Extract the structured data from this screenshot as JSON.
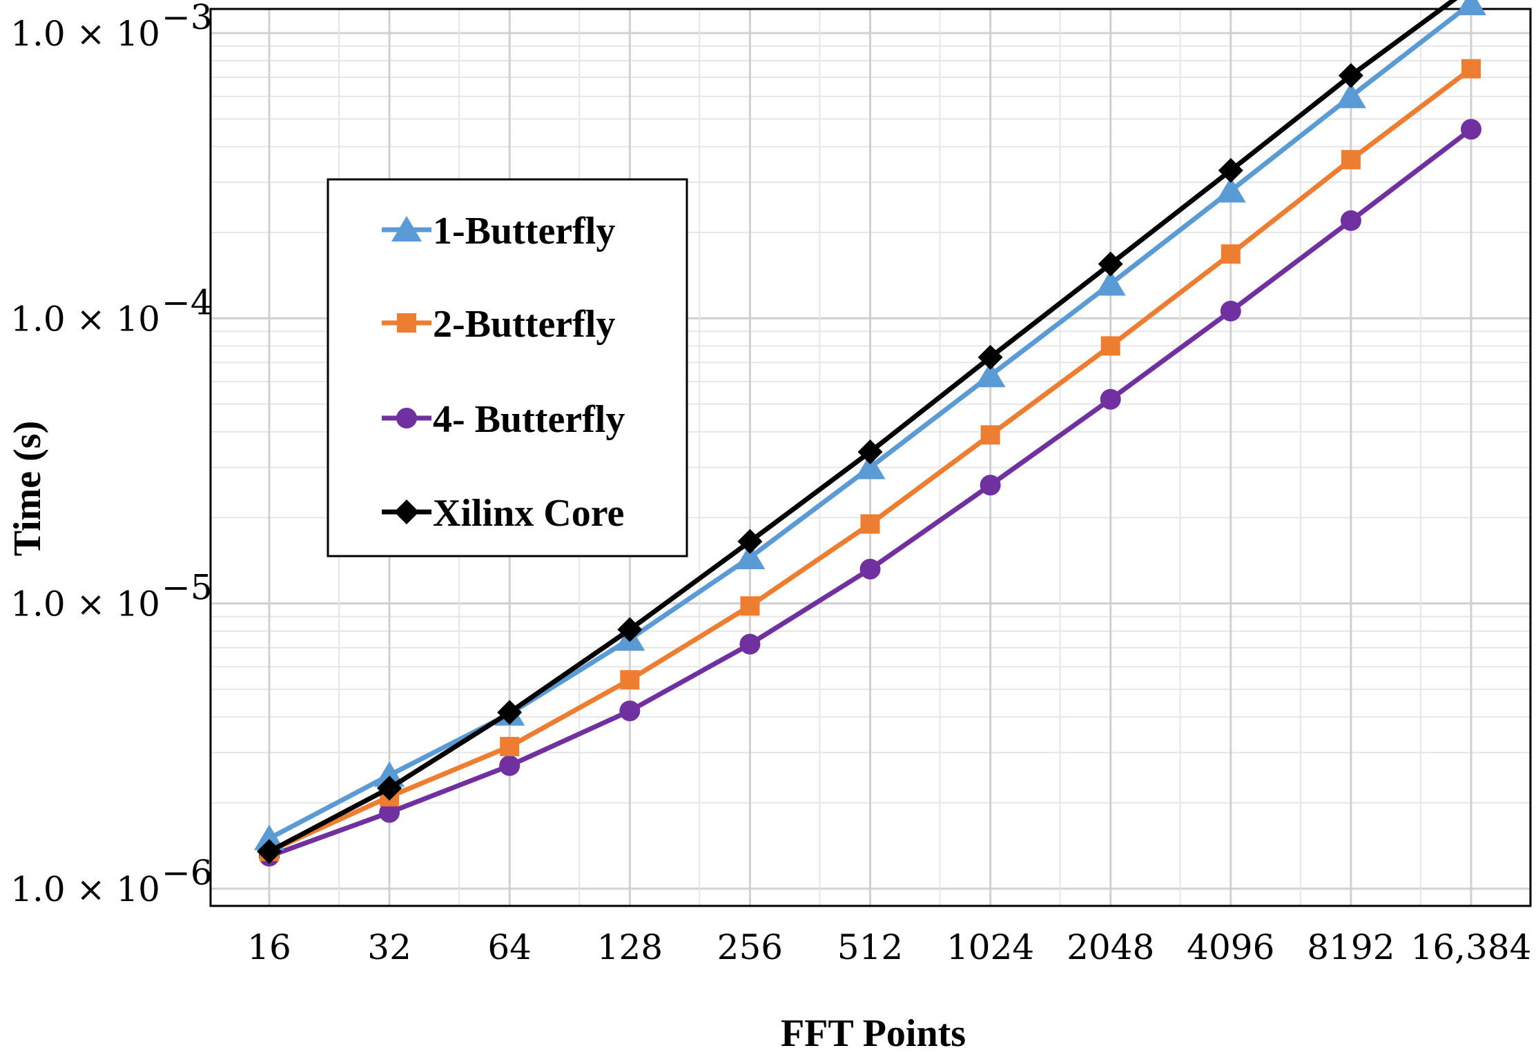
{
  "chart_data": {
    "type": "line",
    "title": "",
    "xlabel": "FFT Points",
    "ylabel": "Time (s)",
    "categories": [
      "16",
      "32",
      "64",
      "128",
      "256",
      "512",
      "1024",
      "2048",
      "4096",
      "8192",
      "16,384"
    ],
    "y_scale": "log",
    "ylim": [
      1e-06,
      0.0015
    ],
    "y_ticks": [
      {
        "value": 1e-06,
        "base": "1.0 × 10",
        "exp": "−6"
      },
      {
        "value": 1e-05,
        "base": "1.0 × 10",
        "exp": "−5"
      },
      {
        "value": 0.0001,
        "base": "1.0 × 10",
        "exp": "−4"
      },
      {
        "value": 0.001,
        "base": "1.0 × 10",
        "exp": "−3"
      }
    ],
    "grid": true,
    "legend_position": "upper-left",
    "series": [
      {
        "name": "1-Butterfly",
        "color": "#5b9bd5",
        "marker": "triangle",
        "values": [
          1.5e-06,
          2.5e-06,
          4.1e-06,
          7.5e-06,
          1.45e-05,
          3e-05,
          6.3e-05,
          0.000132,
          0.00028,
          0.0006,
          0.00127
        ]
      },
      {
        "name": "2-Butterfly",
        "color": "#ed7d31",
        "marker": "square",
        "values": [
          1.35e-06,
          2.1e-06,
          3.15e-06,
          5.4e-06,
          9.8e-06,
          1.9e-05,
          3.9e-05,
          8e-05,
          0.000168,
          0.00036,
          0.00075
        ]
      },
      {
        "name": "4- Butterfly",
        "color": "#7030a0",
        "marker": "circle",
        "values": [
          1.3e-06,
          1.85e-06,
          2.7e-06,
          4.2e-06,
          7.2e-06,
          1.32e-05,
          2.6e-05,
          5.2e-05,
          0.000106,
          0.00022,
          0.00046
        ]
      },
      {
        "name": "Xilinx Core",
        "color": "#000000",
        "marker": "diamond",
        "values": [
          1.35e-06,
          2.25e-06,
          4.15e-06,
          8.1e-06,
          1.65e-05,
          3.4e-05,
          7.3e-05,
          0.000155,
          0.00033,
          0.00071,
          0.00145
        ]
      }
    ]
  }
}
